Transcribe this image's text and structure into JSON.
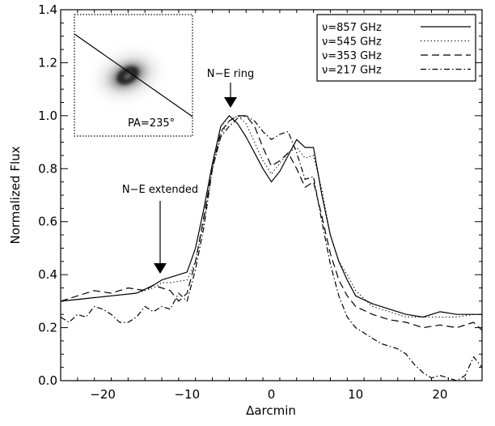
{
  "chart_data": {
    "type": "line",
    "xlabel": "Δarcmin",
    "ylabel": "Normalized Flux",
    "xlim": [
      -25,
      25
    ],
    "ylim": [
      0.0,
      1.4
    ],
    "x_ticks": [
      -20,
      -10,
      0,
      10,
      20
    ],
    "x_tick_labels": [
      "−20",
      "−10",
      "0",
      "10",
      "20"
    ],
    "y_ticks": [
      0.0,
      0.2,
      0.4,
      0.6,
      0.8,
      1.0,
      1.2,
      1.4
    ],
    "y_tick_labels": [
      "0.0",
      "0.2",
      "0.4",
      "0.6",
      "0.8",
      "1.0",
      "1.2",
      "1.4"
    ],
    "legend_position": "top-right",
    "series": [
      {
        "name": "ν=857 GHz",
        "style": "solid",
        "x": [
          -25,
          -22,
          -19,
          -16,
          -14,
          -13,
          -12,
          -10,
          -9,
          -8,
          -7,
          -6,
          -5,
          -4,
          -3,
          -2,
          -1,
          0,
          1,
          2,
          3,
          4,
          5,
          6,
          7,
          8,
          9,
          10,
          12,
          14,
          16,
          18,
          20,
          22,
          24,
          25
        ],
        "y": [
          0.3,
          0.31,
          0.32,
          0.33,
          0.36,
          0.38,
          0.39,
          0.41,
          0.5,
          0.65,
          0.82,
          0.96,
          1.0,
          0.97,
          0.92,
          0.86,
          0.8,
          0.75,
          0.79,
          0.85,
          0.91,
          0.88,
          0.88,
          0.7,
          0.55,
          0.45,
          0.38,
          0.32,
          0.29,
          0.27,
          0.25,
          0.24,
          0.26,
          0.25,
          0.25,
          0.25
        ]
      },
      {
        "name": "ν=545 GHz",
        "style": "dotted",
        "x": [
          -25,
          -22,
          -19,
          -16,
          -14,
          -13,
          -12,
          -10,
          -9,
          -8,
          -7,
          -6,
          -5,
          -4,
          -3,
          -2,
          -1,
          0,
          1,
          2,
          3,
          4,
          5,
          6,
          7,
          8,
          9,
          10,
          12,
          14,
          16,
          18,
          20,
          22,
          24,
          25
        ],
        "y": [
          0.3,
          0.31,
          0.32,
          0.33,
          0.35,
          0.37,
          0.37,
          0.38,
          0.45,
          0.6,
          0.8,
          0.93,
          0.98,
          1.0,
          0.97,
          0.9,
          0.83,
          0.78,
          0.82,
          0.86,
          0.88,
          0.84,
          0.85,
          0.72,
          0.55,
          0.45,
          0.4,
          0.34,
          0.28,
          0.26,
          0.24,
          0.24,
          0.24,
          0.24,
          0.25,
          0.25
        ]
      },
      {
        "name": "ν=353 GHz",
        "style": "dashed",
        "x": [
          -25,
          -23,
          -21,
          -19,
          -17,
          -15,
          -14,
          -13,
          -12,
          -11,
          -10,
          -9,
          -8,
          -7,
          -6,
          -5,
          -4,
          -3,
          -2,
          -1,
          0,
          1,
          2,
          3,
          4,
          5,
          6,
          7,
          8,
          9,
          10,
          12,
          14,
          16,
          18,
          20,
          22,
          24,
          25
        ],
        "y": [
          0.3,
          0.32,
          0.34,
          0.33,
          0.35,
          0.34,
          0.36,
          0.35,
          0.34,
          0.3,
          0.33,
          0.45,
          0.62,
          0.8,
          0.94,
          0.98,
          1.0,
          1.0,
          0.96,
          0.88,
          0.81,
          0.83,
          0.86,
          0.8,
          0.73,
          0.75,
          0.62,
          0.48,
          0.38,
          0.32,
          0.28,
          0.25,
          0.23,
          0.22,
          0.2,
          0.21,
          0.2,
          0.22,
          0.19
        ]
      },
      {
        "name": "ν=217 GHz",
        "style": "dashdot",
        "x": [
          -25,
          -24,
          -23,
          -22,
          -21,
          -20,
          -19,
          -18,
          -17,
          -16,
          -15,
          -14,
          -13,
          -12,
          -11,
          -10,
          -9,
          -8,
          -7,
          -6,
          -5,
          -4,
          -3,
          -2,
          -1,
          0,
          1,
          2,
          3,
          4,
          5,
          6,
          7,
          8,
          9,
          10,
          11,
          12,
          13,
          14,
          15,
          16,
          17,
          18,
          19,
          20,
          21,
          22,
          23,
          24,
          25
        ],
        "y": [
          0.24,
          0.22,
          0.25,
          0.24,
          0.28,
          0.27,
          0.25,
          0.22,
          0.22,
          0.24,
          0.28,
          0.26,
          0.28,
          0.27,
          0.33,
          0.3,
          0.42,
          0.58,
          0.8,
          0.92,
          0.96,
          0.99,
          1.0,
          0.98,
          0.94,
          0.91,
          0.93,
          0.94,
          0.86,
          0.76,
          0.77,
          0.6,
          0.44,
          0.32,
          0.24,
          0.2,
          0.18,
          0.16,
          0.14,
          0.13,
          0.12,
          0.1,
          0.06,
          0.03,
          0.01,
          0.02,
          0.01,
          0.0,
          0.02,
          0.09,
          0.05
        ]
      }
    ],
    "annotations": [
      {
        "text": "N−E ring",
        "x": -5,
        "y": 1.0
      },
      {
        "text": "N−E extended",
        "x": -13.3,
        "y": 0.37
      }
    ],
    "inset": {
      "label": "PA=235°"
    }
  }
}
